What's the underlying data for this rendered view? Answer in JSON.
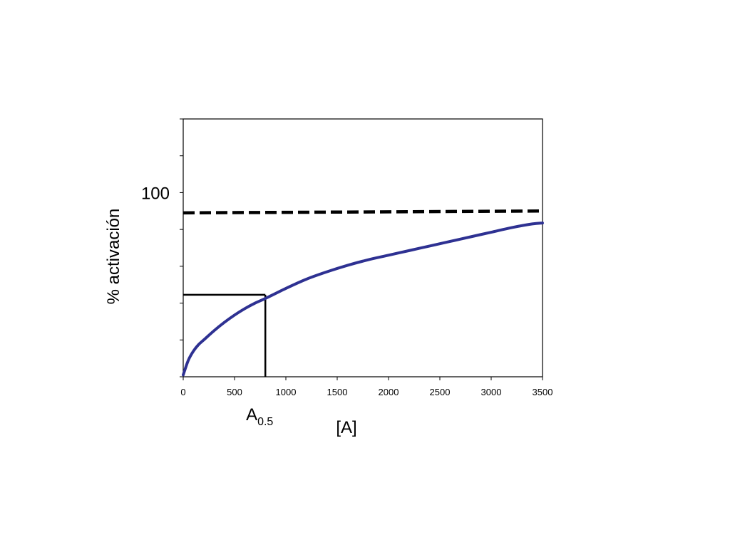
{
  "chart_data": {
    "type": "line",
    "xlabel": "[A]",
    "ylabel": "% activación",
    "xlim": [
      0,
      3500
    ],
    "ylim": [
      0,
      140
    ],
    "x_ticks": [
      0,
      500,
      1000,
      1500,
      2000,
      2500,
      3000,
      3500
    ],
    "x_tick_labels": [
      "0",
      "500",
      "1000",
      "1500",
      "2000",
      "2500",
      "3000",
      "3500"
    ],
    "y_ticks": [
      0,
      20,
      40,
      60,
      80,
      100,
      120,
      140
    ],
    "y_tick_labels_shown": [
      {
        "value": 100,
        "label": "100"
      }
    ],
    "grid": false,
    "series": [
      {
        "color": "#2e3192",
        "x": [
          0,
          50,
          100,
          150,
          200,
          300,
          400,
          500,
          600,
          700,
          800,
          1000,
          1200,
          1400,
          1600,
          1800,
          2000,
          2200,
          2400,
          2600,
          2800,
          3000,
          3200,
          3400,
          3500
        ],
        "y": [
          1,
          9,
          14,
          17.5,
          20,
          25,
          29.5,
          33.5,
          37,
          40,
          42.5,
          48,
          53,
          57,
          60.5,
          63.5,
          66,
          68.5,
          71,
          73.5,
          76,
          78.5,
          81,
          83,
          83.5
        ]
      }
    ],
    "reference_lines": [
      {
        "kind": "horizontal",
        "style": "dashed",
        "color": "#000000",
        "y_start": 89,
        "y_end": 90
      }
    ],
    "annotations": [
      {
        "kind": "drop-lines",
        "x": 800,
        "y": 44.5,
        "color": "#000000"
      },
      {
        "kind": "label",
        "text_base": "A",
        "text_sub": "0.5",
        "x": 800
      }
    ]
  }
}
